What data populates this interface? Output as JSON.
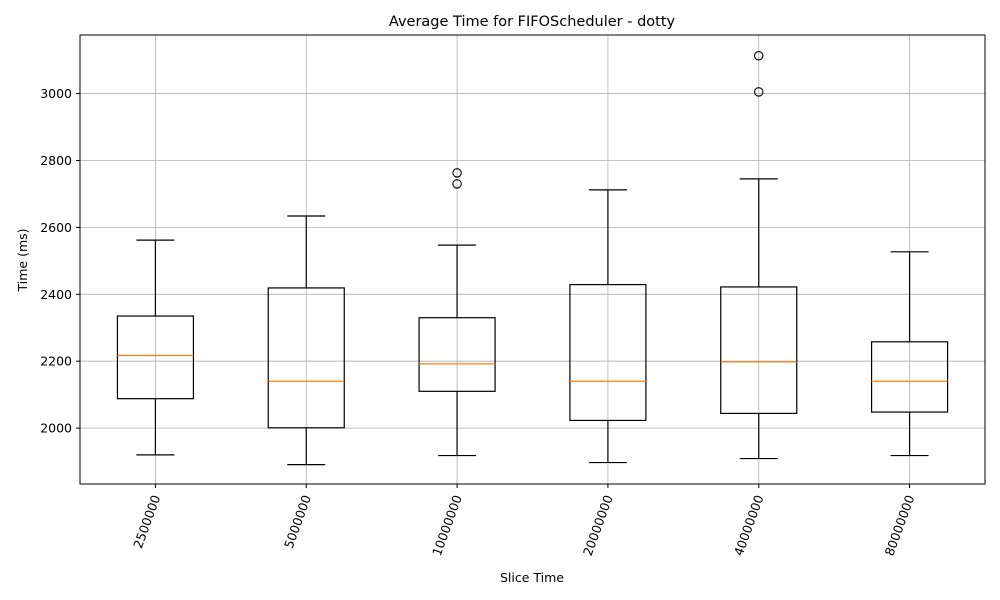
{
  "chart_data": {
    "type": "boxplot",
    "title": "Average Time for FIFOScheduler - dotty",
    "xlabel": "Slice Time",
    "ylabel": "Time (ms)",
    "ylim": [
      1833,
      3175
    ],
    "grid": true,
    "y_ticks": [
      "2000",
      "2200",
      "2400",
      "2600",
      "2800",
      "3000"
    ],
    "colors": {
      "box": "#000000",
      "median": "#ff7f0e",
      "grid": "#b0b0b0"
    },
    "categories": [
      "2500000",
      "5000000",
      "10000000",
      "20000000",
      "40000000",
      "80000000"
    ],
    "boxes": [
      {
        "whisker_low": 1920,
        "q1": 2088,
        "median": 2217,
        "q3": 2335,
        "whisker_high": 2562,
        "fliers": []
      },
      {
        "whisker_low": 1891,
        "q1": 2001,
        "median": 2140,
        "q3": 2419,
        "whisker_high": 2634,
        "fliers": []
      },
      {
        "whisker_low": 1918,
        "q1": 2110,
        "median": 2192,
        "q3": 2330,
        "whisker_high": 2547,
        "fliers": [
          2763,
          2730
        ]
      },
      {
        "whisker_low": 1897,
        "q1": 2023,
        "median": 2140,
        "q3": 2429,
        "whisker_high": 2712,
        "fliers": []
      },
      {
        "whisker_low": 1909,
        "q1": 2044,
        "median": 2198,
        "q3": 2422,
        "whisker_high": 2745,
        "fliers": [
          3113,
          3005
        ]
      },
      {
        "whisker_low": 1918,
        "q1": 2048,
        "median": 2140,
        "q3": 2258,
        "whisker_high": 2527,
        "fliers": []
      }
    ]
  }
}
